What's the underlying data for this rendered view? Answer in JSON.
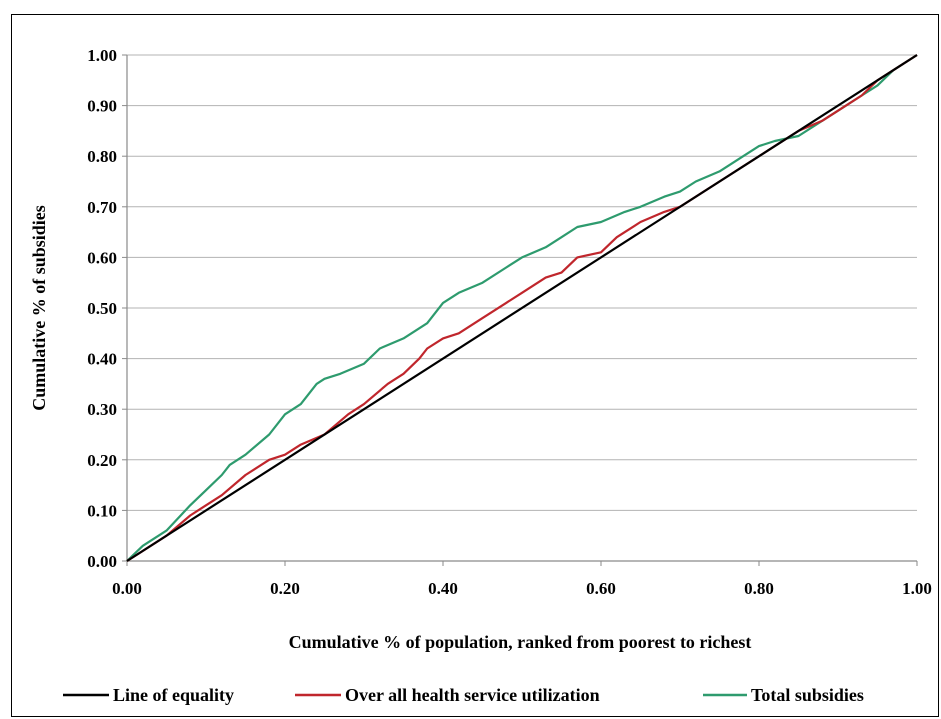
{
  "chart_data": {
    "type": "line",
    "title": "",
    "xlabel": "Cumulative % of population, ranked from poorest to richest",
    "ylabel": "Cumulative % of subsidies",
    "xlim": [
      0,
      1
    ],
    "ylim": [
      0,
      1
    ],
    "x_ticks": [
      "0.00",
      "0.20",
      "0.40",
      "0.60",
      "0.80",
      "1.00"
    ],
    "y_ticks": [
      "0.00",
      "0.10",
      "0.20",
      "0.30",
      "0.40",
      "0.50",
      "0.60",
      "0.70",
      "0.80",
      "0.90",
      "1.00"
    ],
    "grid": "horizontal",
    "legend_position": "bottom",
    "series": [
      {
        "name": "Line of equality",
        "color": "#000000",
        "x": [
          0,
          1
        ],
        "y": [
          0,
          1
        ]
      },
      {
        "name": "Over all health service utilization",
        "color": "#c0262c",
        "x": [
          0,
          0.02,
          0.05,
          0.08,
          0.1,
          0.12,
          0.15,
          0.18,
          0.2,
          0.22,
          0.25,
          0.28,
          0.3,
          0.33,
          0.35,
          0.37,
          0.38,
          0.4,
          0.42,
          0.45,
          0.48,
          0.5,
          0.53,
          0.55,
          0.57,
          0.6,
          0.62,
          0.65,
          0.68,
          0.7,
          0.72,
          0.75,
          0.78,
          0.8,
          0.82,
          0.85,
          0.88,
          0.9,
          0.93,
          0.95,
          0.97,
          1.0
        ],
        "y": [
          0,
          0.02,
          0.05,
          0.09,
          0.11,
          0.13,
          0.17,
          0.2,
          0.21,
          0.23,
          0.25,
          0.29,
          0.31,
          0.35,
          0.37,
          0.4,
          0.42,
          0.44,
          0.45,
          0.48,
          0.51,
          0.53,
          0.56,
          0.57,
          0.6,
          0.61,
          0.64,
          0.67,
          0.69,
          0.7,
          0.72,
          0.75,
          0.78,
          0.8,
          0.82,
          0.85,
          0.87,
          0.89,
          0.92,
          0.95,
          0.97,
          1.0
        ]
      },
      {
        "name": "Total subsidies",
        "color": "#2e9b6e",
        "x": [
          0,
          0.02,
          0.05,
          0.08,
          0.1,
          0.12,
          0.13,
          0.15,
          0.18,
          0.2,
          0.22,
          0.24,
          0.25,
          0.27,
          0.3,
          0.32,
          0.35,
          0.38,
          0.4,
          0.42,
          0.45,
          0.48,
          0.5,
          0.53,
          0.55,
          0.57,
          0.6,
          0.63,
          0.65,
          0.68,
          0.7,
          0.72,
          0.75,
          0.78,
          0.8,
          0.82,
          0.85,
          0.88,
          0.9,
          0.93,
          0.95,
          0.97,
          1.0
        ],
        "y": [
          0,
          0.03,
          0.06,
          0.11,
          0.14,
          0.17,
          0.19,
          0.21,
          0.25,
          0.29,
          0.31,
          0.35,
          0.36,
          0.37,
          0.39,
          0.42,
          0.44,
          0.47,
          0.51,
          0.53,
          0.55,
          0.58,
          0.6,
          0.62,
          0.64,
          0.66,
          0.67,
          0.69,
          0.7,
          0.72,
          0.73,
          0.75,
          0.77,
          0.8,
          0.82,
          0.83,
          0.84,
          0.87,
          0.89,
          0.92,
          0.94,
          0.97,
          1.0
        ]
      }
    ]
  }
}
